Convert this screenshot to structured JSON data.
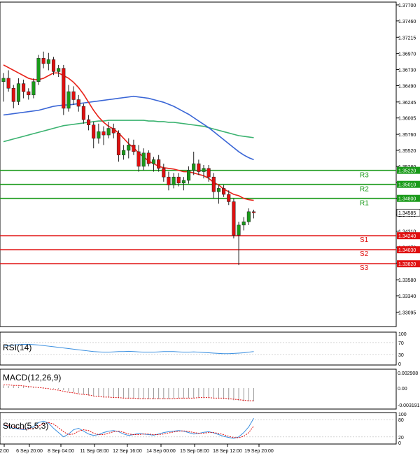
{
  "chart_data": {
    "type": "candlestick",
    "instrument_note": "",
    "main_panel": {
      "ylim": [
        1.329,
        1.377
      ],
      "y_ticks": [
        "1.37700",
        "1.37460",
        "1.37215",
        "1.36970",
        "1.36730",
        "1.36490",
        "1.36245",
        "1.36005",
        "1.35760",
        "1.35520",
        "1.35280",
        "1.35040",
        "1.34800",
        "1.34555",
        "1.34310",
        "1.34070",
        "1.33830",
        "1.33580",
        "1.33340",
        "1.33095"
      ],
      "current_price": {
        "value": 1.34585,
        "label": "1.34585"
      },
      "levels": [
        {
          "name": "R3",
          "value": 1.3522,
          "label": "1.35220",
          "color": "#1a9a1a"
        },
        {
          "name": "R2",
          "value": 1.3501,
          "label": "1.35010",
          "color": "#1a9a1a"
        },
        {
          "name": "R1",
          "value": 1.348,
          "label": "1.34800",
          "color": "#1a9a1a"
        },
        {
          "name": "S1",
          "value": 1.3424,
          "label": "1.34240",
          "color": "#e01010"
        },
        {
          "name": "S2",
          "value": 1.3403,
          "label": "1.34030",
          "color": "#e01010"
        },
        {
          "name": "S3",
          "value": 1.3382,
          "label": "1.33820",
          "color": "#e01010"
        }
      ],
      "candles": [
        {
          "o": 1.3655,
          "h": 1.3668,
          "l": 1.3625,
          "c": 1.366
        },
        {
          "o": 1.366,
          "h": 1.3672,
          "l": 1.364,
          "c": 1.3645
        },
        {
          "o": 1.3645,
          "h": 1.365,
          "l": 1.3615,
          "c": 1.3625
        },
        {
          "o": 1.3625,
          "h": 1.366,
          "l": 1.362,
          "c": 1.3652
        },
        {
          "o": 1.3652,
          "h": 1.3658,
          "l": 1.363,
          "c": 1.364
        },
        {
          "o": 1.364,
          "h": 1.3645,
          "l": 1.3628,
          "c": 1.3635
        },
        {
          "o": 1.3635,
          "h": 1.366,
          "l": 1.363,
          "c": 1.3655
        },
        {
          "o": 1.3655,
          "h": 1.3695,
          "l": 1.365,
          "c": 1.369
        },
        {
          "o": 1.369,
          "h": 1.37,
          "l": 1.3675,
          "c": 1.3682
        },
        {
          "o": 1.3682,
          "h": 1.3698,
          "l": 1.3672,
          "c": 1.3688
        },
        {
          "o": 1.3688,
          "h": 1.3692,
          "l": 1.3665,
          "c": 1.367
        },
        {
          "o": 1.367,
          "h": 1.368,
          "l": 1.3662,
          "c": 1.3675
        },
        {
          "o": 1.3675,
          "h": 1.368,
          "l": 1.3605,
          "c": 1.3615
        },
        {
          "o": 1.3615,
          "h": 1.365,
          "l": 1.361,
          "c": 1.364
        },
        {
          "o": 1.364,
          "h": 1.3648,
          "l": 1.362,
          "c": 1.3628
        },
        {
          "o": 1.3628,
          "h": 1.3635,
          "l": 1.361,
          "c": 1.3618
        },
        {
          "o": 1.3618,
          "h": 1.3622,
          "l": 1.3592,
          "c": 1.3598
        },
        {
          "o": 1.3598,
          "h": 1.3605,
          "l": 1.3582,
          "c": 1.359
        },
        {
          "o": 1.359,
          "h": 1.3595,
          "l": 1.3555,
          "c": 1.357
        },
        {
          "o": 1.357,
          "h": 1.3592,
          "l": 1.3562,
          "c": 1.358
        },
        {
          "o": 1.358,
          "h": 1.3588,
          "l": 1.356,
          "c": 1.3575
        },
        {
          "o": 1.3575,
          "h": 1.3595,
          "l": 1.357,
          "c": 1.3585
        },
        {
          "o": 1.3585,
          "h": 1.3592,
          "l": 1.357,
          "c": 1.3578
        },
        {
          "o": 1.3578,
          "h": 1.3582,
          "l": 1.3535,
          "c": 1.3545
        },
        {
          "o": 1.3545,
          "h": 1.356,
          "l": 1.3538,
          "c": 1.3552
        },
        {
          "o": 1.3552,
          "h": 1.357,
          "l": 1.354,
          "c": 1.356
        },
        {
          "o": 1.356,
          "h": 1.3568,
          "l": 1.3545,
          "c": 1.355
        },
        {
          "o": 1.355,
          "h": 1.356,
          "l": 1.352,
          "c": 1.3528
        },
        {
          "o": 1.3528,
          "h": 1.3555,
          "l": 1.3522,
          "c": 1.3548
        },
        {
          "o": 1.3548,
          "h": 1.3552,
          "l": 1.3528,
          "c": 1.3532
        },
        {
          "o": 1.3532,
          "h": 1.3542,
          "l": 1.352,
          "c": 1.3538
        },
        {
          "o": 1.3538,
          "h": 1.3545,
          "l": 1.352,
          "c": 1.3525
        },
        {
          "o": 1.3525,
          "h": 1.3532,
          "l": 1.3505,
          "c": 1.3512
        },
        {
          "o": 1.3512,
          "h": 1.352,
          "l": 1.3492,
          "c": 1.35
        },
        {
          "o": 1.35,
          "h": 1.3518,
          "l": 1.3495,
          "c": 1.3512
        },
        {
          "o": 1.3512,
          "h": 1.3518,
          "l": 1.3498,
          "c": 1.3503
        },
        {
          "o": 1.3503,
          "h": 1.3512,
          "l": 1.3492,
          "c": 1.3507
        },
        {
          "o": 1.3507,
          "h": 1.3528,
          "l": 1.3502,
          "c": 1.3522
        },
        {
          "o": 1.3522,
          "h": 1.355,
          "l": 1.3515,
          "c": 1.3532
        },
        {
          "o": 1.3532,
          "h": 1.3538,
          "l": 1.3515,
          "c": 1.352
        },
        {
          "o": 1.352,
          "h": 1.353,
          "l": 1.351,
          "c": 1.3525
        },
        {
          "o": 1.3525,
          "h": 1.353,
          "l": 1.3505,
          "c": 1.3512
        },
        {
          "o": 1.3512,
          "h": 1.3518,
          "l": 1.348,
          "c": 1.349
        },
        {
          "o": 1.349,
          "h": 1.35,
          "l": 1.3472,
          "c": 1.3495
        },
        {
          "o": 1.3495,
          "h": 1.35,
          "l": 1.3482,
          "c": 1.3486
        },
        {
          "o": 1.3486,
          "h": 1.3492,
          "l": 1.347,
          "c": 1.3475
        },
        {
          "o": 1.3475,
          "h": 1.348,
          "l": 1.342,
          "c": 1.3425
        },
        {
          "o": 1.3425,
          "h": 1.3445,
          "l": 1.338,
          "c": 1.344
        },
        {
          "o": 1.344,
          "h": 1.3452,
          "l": 1.3432,
          "c": 1.3445
        },
        {
          "o": 1.3445,
          "h": 1.3465,
          "l": 1.344,
          "c": 1.346
        },
        {
          "o": 1.346,
          "h": 1.3463,
          "l": 1.345,
          "c": 1.34585
        }
      ],
      "ma_fast": [
        1.368,
        1.3676,
        1.3672,
        1.3668,
        1.3664,
        1.366,
        1.3658,
        1.3658,
        1.366,
        1.3664,
        1.3668,
        1.3668,
        1.3664,
        1.366,
        1.3654,
        1.3646,
        1.3636,
        1.3624,
        1.3612,
        1.3602,
        1.3594,
        1.3588,
        1.3584,
        1.3578,
        1.357,
        1.3562,
        1.3556,
        1.3548,
        1.3542,
        1.3536,
        1.3532,
        1.3528,
        1.3526,
        1.3525,
        1.3524,
        1.3522,
        1.352,
        1.352,
        1.3518,
        1.3516,
        1.3514,
        1.351,
        1.3504,
        1.35,
        1.3494,
        1.349,
        1.3486,
        1.3484,
        1.348,
        1.3478,
        1.3477
      ],
      "ma_medium": [
        1.3605,
        1.3606,
        1.3607,
        1.3608,
        1.3609,
        1.361,
        1.3611,
        1.3612,
        1.3614,
        1.3616,
        1.3618,
        1.3619,
        1.362,
        1.362,
        1.3621,
        1.3622,
        1.3623,
        1.3624,
        1.3625,
        1.3626,
        1.3627,
        1.3628,
        1.3629,
        1.363,
        1.3631,
        1.3632,
        1.3633,
        1.3632,
        1.3631,
        1.363,
        1.3628,
        1.3626,
        1.3624,
        1.3621,
        1.3618,
        1.3614,
        1.361,
        1.3606,
        1.3601,
        1.3596,
        1.3591,
        1.3586,
        1.358,
        1.3574,
        1.3568,
        1.3562,
        1.3556,
        1.355,
        1.3545,
        1.3541,
        1.3538
      ],
      "ma_slow": [
        1.3565,
        1.3567,
        1.3569,
        1.3571,
        1.3573,
        1.3575,
        1.3577,
        1.3579,
        1.3581,
        1.3583,
        1.3585,
        1.3587,
        1.3589,
        1.359,
        1.3591,
        1.3592,
        1.3593,
        1.3594,
        1.3595,
        1.3596,
        1.3596,
        1.3597,
        1.3597,
        1.3597,
        1.3597,
        1.3597,
        1.3597,
        1.3597,
        1.3597,
        1.3596,
        1.3596,
        1.3595,
        1.3595,
        1.3594,
        1.3594,
        1.3593,
        1.3592,
        1.3591,
        1.359,
        1.3589,
        1.3588,
        1.3586,
        1.3584,
        1.3582,
        1.358,
        1.3578,
        1.3576,
        1.3574,
        1.3573,
        1.3572,
        1.3571
      ],
      "colors": {
        "bull": "#1a9a1a",
        "bear": "#e01010",
        "ma_fast": "#e8231a",
        "ma_medium": "#3a66d6",
        "ma_slow": "#3cb371",
        "current": "#000000"
      }
    },
    "rsi": {
      "title": "RSI(14)",
      "ylim": [
        0,
        100
      ],
      "y_ticks": [
        "100",
        "70",
        "30",
        "0"
      ],
      "levels": [
        70,
        30
      ],
      "values": [
        58,
        60,
        62,
        63,
        64,
        64,
        63,
        62,
        60,
        58,
        56,
        54,
        52,
        50,
        48,
        46,
        44,
        42,
        40,
        39,
        38,
        38,
        39,
        40,
        40,
        41,
        40,
        39,
        38,
        38,
        38,
        39,
        40,
        40,
        40,
        39,
        38,
        38,
        39,
        38,
        37,
        36,
        35,
        34,
        33,
        33,
        34,
        35,
        36,
        38,
        40
      ],
      "color": "#3a8fe0"
    },
    "macd": {
      "title": "MACD(12,26,9)",
      "ylim": [
        -0.0037,
        0.0033
      ],
      "y_ticks": [
        "0.002908",
        "0.00",
        "-0.003191"
      ],
      "hist": [
        0.0005,
        0.0004,
        0.0004,
        0.0003,
        0.0003,
        0.0002,
        0.0002,
        0.0001,
        0.0001,
        0.0,
        -0.0001,
        -0.0002,
        -0.0004,
        -0.0006,
        -0.0008,
        -0.001,
        -0.0012,
        -0.0014,
        -0.0015,
        -0.0016,
        -0.0017,
        -0.0018,
        -0.0018,
        -0.0019,
        -0.0019,
        -0.002,
        -0.002,
        -0.0021,
        -0.0021,
        -0.0021,
        -0.0021,
        -0.0021,
        -0.0021,
        -0.0021,
        -0.002,
        -0.002,
        -0.002,
        -0.0019,
        -0.0019,
        -0.0019,
        -0.0019,
        -0.0019,
        -0.0019,
        -0.002,
        -0.0021,
        -0.0022,
        -0.0023,
        -0.0024,
        -0.0025,
        -0.0025,
        -0.0025
      ],
      "signal": [
        0.0006,
        0.0006,
        0.0005,
        0.0005,
        0.0004,
        0.0003,
        0.0002,
        0.0001,
        0.0,
        -0.0001,
        -0.0003,
        -0.0004,
        -0.0006,
        -0.0008,
        -0.0009,
        -0.0011,
        -0.0012,
        -0.0013,
        -0.0015,
        -0.0016,
        -0.0017,
        -0.0017,
        -0.0018,
        -0.0018,
        -0.0019,
        -0.0019,
        -0.0019,
        -0.002,
        -0.002,
        -0.002,
        -0.002,
        -0.002,
        -0.002,
        -0.002,
        -0.002,
        -0.0019,
        -0.0019,
        -0.0019,
        -0.0019,
        -0.0018,
        -0.0018,
        -0.0018,
        -0.0019,
        -0.0019,
        -0.0019,
        -0.002,
        -0.0021,
        -0.0022,
        -0.0023,
        -0.0024,
        -0.0024
      ],
      "hist_color": "#9a9a9a",
      "signal_color": "#e01010"
    },
    "stoch": {
      "title": "Stoch(5,5,3)",
      "ylim": [
        0,
        100
      ],
      "y_ticks": [
        "100",
        "80",
        "20",
        "0"
      ],
      "levels": [
        80,
        20
      ],
      "k": [
        60,
        55,
        50,
        48,
        45,
        50,
        55,
        70,
        75,
        68,
        50,
        35,
        20,
        30,
        45,
        50,
        40,
        30,
        25,
        28,
        35,
        40,
        42,
        38,
        30,
        25,
        28,
        32,
        30,
        28,
        26,
        30,
        35,
        38,
        40,
        42,
        40,
        35,
        30,
        32,
        36,
        38,
        34,
        28,
        22,
        18,
        15,
        20,
        35,
        55,
        85
      ],
      "d": [
        62,
        60,
        55,
        50,
        48,
        47,
        50,
        58,
        66,
        70,
        65,
        52,
        38,
        28,
        30,
        40,
        45,
        42,
        33,
        28,
        28,
        33,
        38,
        40,
        36,
        30,
        28,
        28,
        30,
        30,
        28,
        28,
        30,
        34,
        37,
        40,
        41,
        39,
        35,
        33,
        33,
        35,
        35,
        32,
        28,
        22,
        18,
        17,
        22,
        35,
        58
      ],
      "k_color": "#3a8fe0",
      "d_color": "#e01010"
    },
    "x_ticks": [
      "2:00",
      "6 Sep 20:00",
      "8 Sep 04:00",
      "11 Sep 08:00",
      "12 Sep 16:00",
      "14 Sep 00:00",
      "15 Sep 08:00",
      "18 Sep 12:00",
      "19 Sep 20:00"
    ]
  }
}
